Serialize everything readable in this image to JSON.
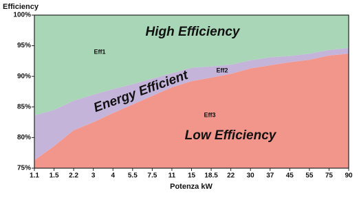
{
  "chart_data": {
    "type": "area",
    "ylabel": "Efficiency",
    "xlabel": "Potenza kW",
    "categories": [
      "1.1",
      "1.5",
      "2.2",
      "3",
      "4",
      "5.5",
      "7.5",
      "11",
      "15",
      "18.5",
      "22",
      "30",
      "37",
      "45",
      "55",
      "75",
      "90"
    ],
    "series": [
      {
        "name": "Eff3",
        "label": "Low Efficiency",
        "color": "#f2958b",
        "values": [
          76.3,
          78.6,
          81.2,
          82.5,
          84.0,
          85.4,
          86.8,
          88.2,
          89.2,
          89.8,
          90.4,
          91.3,
          91.8,
          92.3,
          92.7,
          93.4,
          93.7
        ]
      },
      {
        "name": "Eff2",
        "label": "Energy Efficient",
        "color": "#c5b4da",
        "values": [
          83.6,
          84.5,
          86.0,
          87.0,
          87.9,
          88.7,
          89.6,
          90.5,
          91.4,
          91.6,
          91.9,
          92.6,
          93.1,
          93.3,
          93.7,
          94.3,
          94.6
        ]
      }
    ],
    "top_region": {
      "name": "Eff1",
      "label": "High Efficiency",
      "color": "#a9d6b6"
    },
    "ylim": [
      75,
      100
    ],
    "yticks": [
      {
        "value": 75,
        "label": "75%"
      },
      {
        "value": 80,
        "label": "80%"
      },
      {
        "value": 85,
        "label": "85%"
      },
      {
        "value": 90,
        "label": "90%"
      },
      {
        "value": 95,
        "label": "95%"
      },
      {
        "value": 100,
        "label": "100%"
      }
    ],
    "grid": false
  }
}
